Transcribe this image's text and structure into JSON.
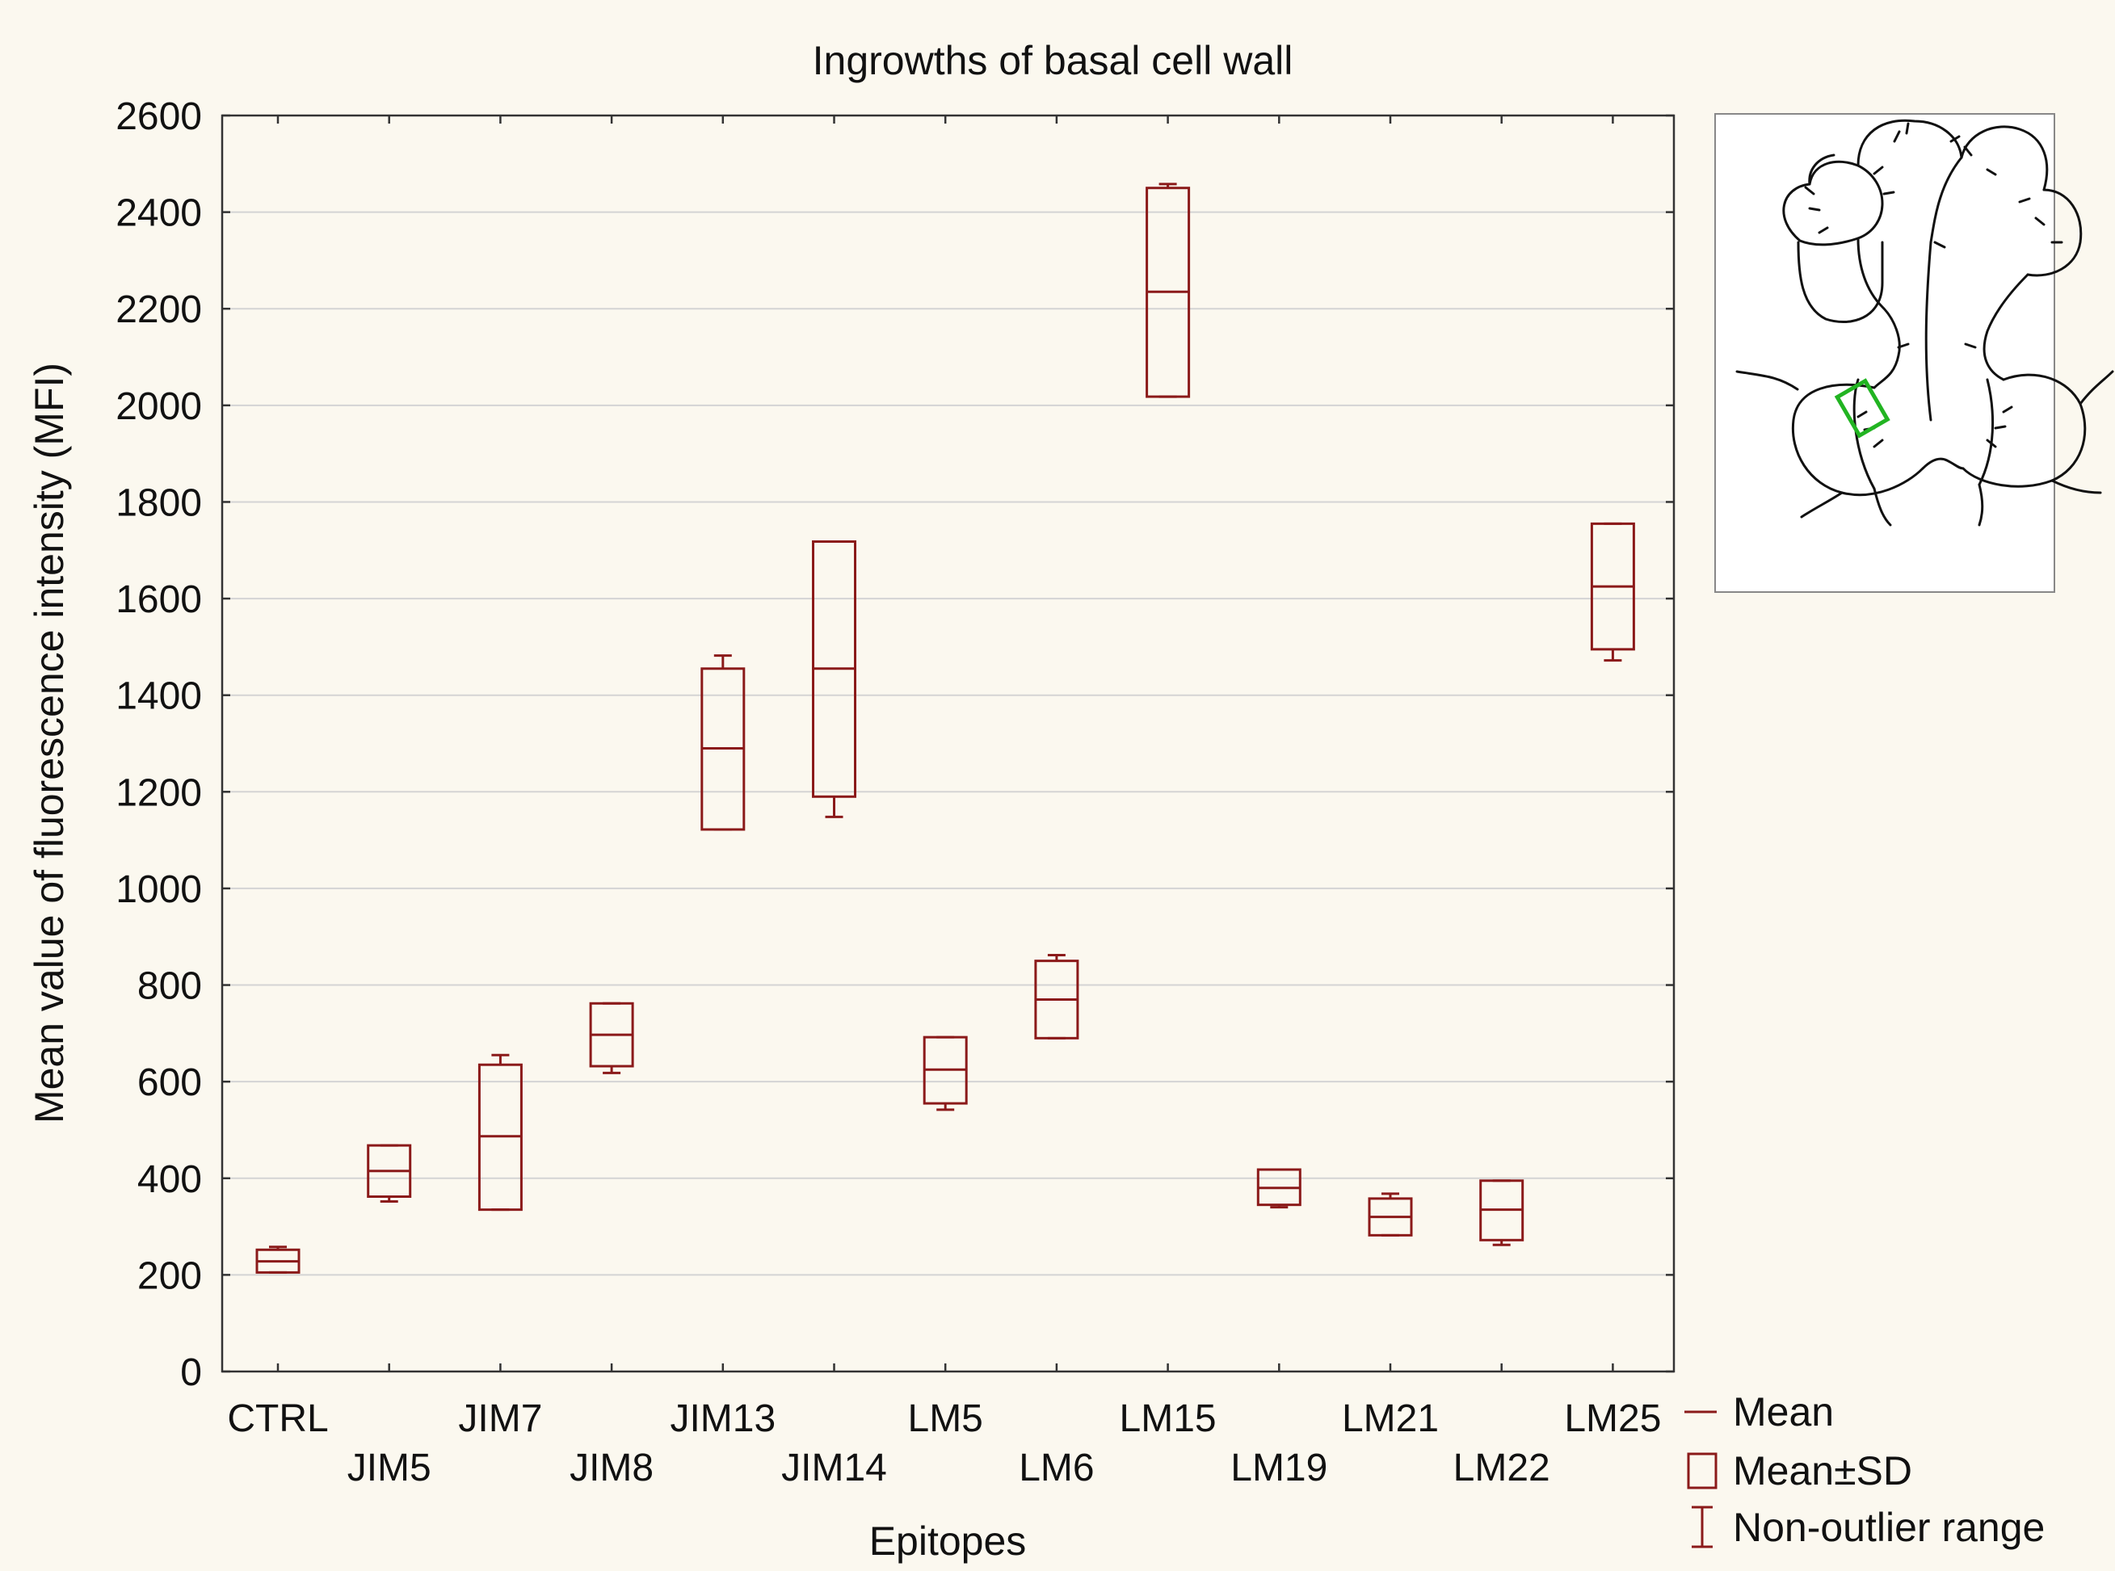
{
  "chart_data": {
    "type": "box",
    "title": "Ingrowths of basal cell wall",
    "xlabel": "Epitopes",
    "ylabel": "Mean value of fluorescence intensity (MFI)",
    "ylim": [
      0,
      2600
    ],
    "yticks": [
      0,
      200,
      400,
      600,
      800,
      1000,
      1200,
      1400,
      1600,
      1800,
      2000,
      2200,
      2400,
      2600
    ],
    "grid": true,
    "legend_position": "bottom-right",
    "series_color": "#8b1a1a",
    "categories": [
      "CTRL",
      "JIM5",
      "JIM7",
      "JIM8",
      "JIM13",
      "JIM14",
      "LM5",
      "LM6",
      "LM15",
      "LM19",
      "LM21",
      "LM22",
      "LM25"
    ],
    "boxes": [
      {
        "category": "CTRL",
        "mean": 228,
        "sd_low": 205,
        "sd_high": 252,
        "min": 205,
        "max": 258
      },
      {
        "category": "JIM5",
        "mean": 415,
        "sd_low": 362,
        "sd_high": 468,
        "min": 352,
        "max": 468
      },
      {
        "category": "JIM7",
        "mean": 487,
        "sd_low": 335,
        "sd_high": 635,
        "min": 335,
        "max": 655
      },
      {
        "category": "JIM8",
        "mean": 697,
        "sd_low": 632,
        "sd_high": 762,
        "min": 618,
        "max": 762
      },
      {
        "category": "JIM13",
        "mean": 1290,
        "sd_low": 1122,
        "sd_high": 1455,
        "min": 1122,
        "max": 1482
      },
      {
        "category": "JIM14",
        "mean": 1455,
        "sd_low": 1190,
        "sd_high": 1718,
        "min": 1148,
        "max": 1718
      },
      {
        "category": "LM5",
        "mean": 625,
        "sd_low": 555,
        "sd_high": 692,
        "min": 542,
        "max": 692
      },
      {
        "category": "LM6",
        "mean": 770,
        "sd_low": 690,
        "sd_high": 850,
        "min": 690,
        "max": 862
      },
      {
        "category": "LM15",
        "mean": 2235,
        "sd_low": 2018,
        "sd_high": 2450,
        "min": 2018,
        "max": 2458
      },
      {
        "category": "LM19",
        "mean": 380,
        "sd_low": 345,
        "sd_high": 418,
        "min": 340,
        "max": 418
      },
      {
        "category": "LM21",
        "mean": 320,
        "sd_low": 282,
        "sd_high": 358,
        "min": 282,
        "max": 368
      },
      {
        "category": "LM22",
        "mean": 335,
        "sd_low": 272,
        "sd_high": 395,
        "min": 262,
        "max": 395
      },
      {
        "category": "LM25",
        "mean": 1625,
        "sd_low": 1495,
        "sd_high": 1755,
        "min": 1472,
        "max": 1755
      }
    ],
    "legend": [
      {
        "symbol": "mean-line",
        "label": "Mean"
      },
      {
        "symbol": "box",
        "label": "Mean±SD"
      },
      {
        "symbol": "whisker",
        "label": "Non-outlier range"
      }
    ]
  },
  "inset": {
    "icon": "plant-cell-diagram-icon",
    "highlight_color": "#22b422"
  }
}
